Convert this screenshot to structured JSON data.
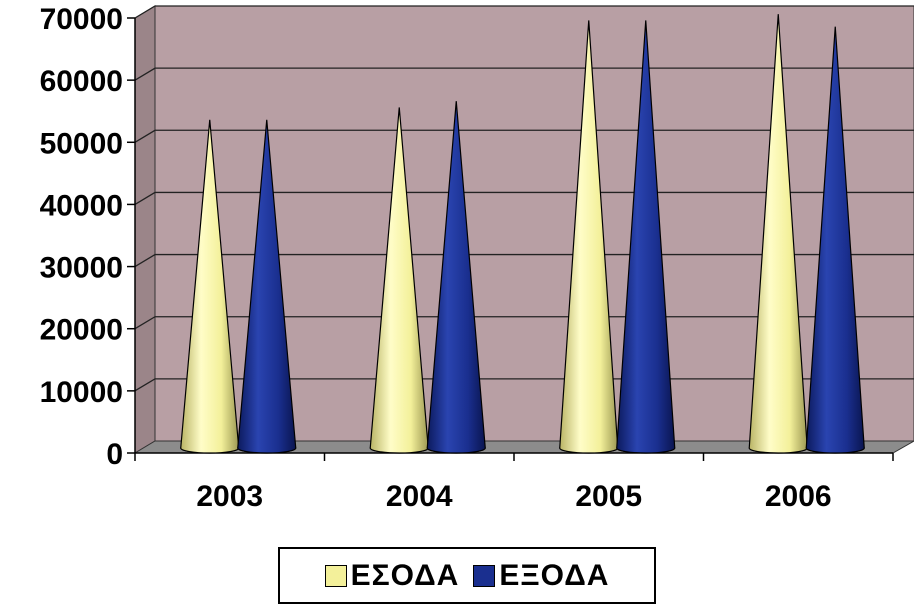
{
  "chart_data": {
    "type": "bar",
    "bar_shape": "cone",
    "three_d": true,
    "categories": [
      "2003",
      "2004",
      "2005",
      "2006"
    ],
    "series": [
      {
        "name": "ΕΣΟΔΑ",
        "values": [
          52000,
          54000,
          68000,
          69000
        ],
        "color": "#F3F09A"
      },
      {
        "name": "ΕΞΟΔΑ",
        "values": [
          52000,
          55000,
          68000,
          67000
        ],
        "color": "#1A2F8F"
      }
    ],
    "y_ticks": [
      "0",
      "10000",
      "20000",
      "30000",
      "40000",
      "50000",
      "60000",
      "70000"
    ],
    "ylim": [
      0,
      70000
    ],
    "grid": true,
    "legend_position": "bottom",
    "wall_color": "#B89FA4",
    "floor_color": "#8C8C8C"
  }
}
